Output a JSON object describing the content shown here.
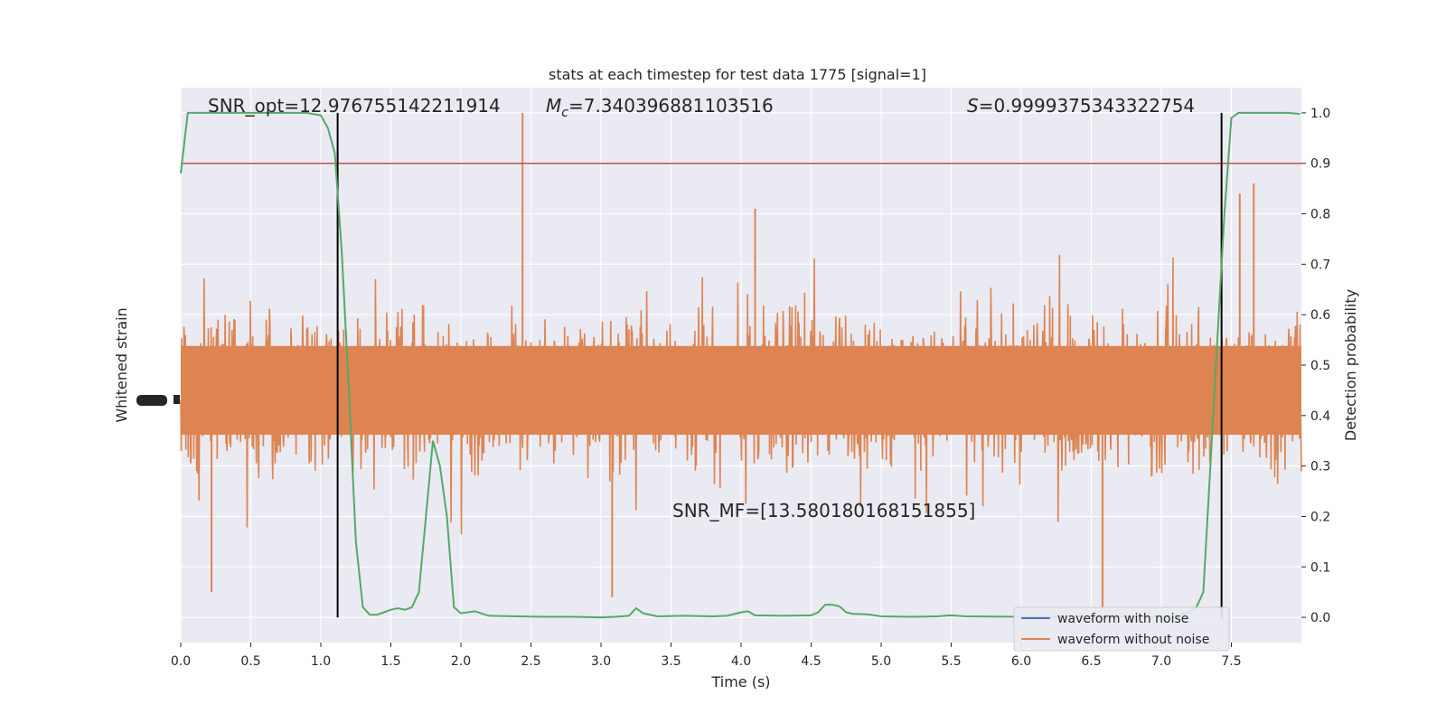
{
  "chart_data": {
    "type": "line",
    "title": "stats at each timestep for test data 1775 [signal=1]",
    "xlabel": "Time (s)",
    "ylabel_left": "Whitened strain",
    "ylabel_right": "Detection probability",
    "xlim": [
      0.0,
      8.0
    ],
    "x_ticks": [
      0.0,
      0.5,
      1.0,
      1.5,
      2.0,
      2.5,
      3.0,
      3.5,
      4.0,
      4.5,
      5.0,
      5.5,
      6.0,
      6.5,
      7.0,
      7.5
    ],
    "x_tick_labels": [
      "0.0",
      "0.5",
      "1.0",
      "1.5",
      "2.0",
      "2.5",
      "3.0",
      "3.5",
      "4.0",
      "4.5",
      "5.0",
      "5.5",
      "6.0",
      "6.5",
      "7.0",
      "7.5"
    ],
    "right_ylim": [
      -0.05,
      1.05
    ],
    "right_y_ticks": [
      0.0,
      0.1,
      0.2,
      0.3,
      0.4,
      0.5,
      0.6,
      0.7,
      0.8,
      0.9,
      1.0
    ],
    "right_y_tick_labels": [
      "0.0",
      "0.1",
      "0.2",
      "0.3",
      "0.4",
      "0.5",
      "0.6",
      "0.7",
      "0.8",
      "0.9",
      "1.0"
    ],
    "threshold": 0.9,
    "event_lines_x": [
      1.12,
      7.43
    ],
    "annotations": {
      "snr_opt": "SNR_opt=12.976755142211914",
      "mc_symbol": "M",
      "mc_sub": "c",
      "mc_value": "=7.340396881103516",
      "s_symbol": "S",
      "s_value": "=0.9999375343322754",
      "snr_mf": "SNR_MF=[13.580180168151855]"
    },
    "legend": {
      "placement": "lower-right",
      "entries": [
        {
          "label": "waveform with noise",
          "color": "#4c72b0"
        },
        {
          "label": "waveform without noise",
          "color": "#dd8452"
        }
      ]
    },
    "series": [
      {
        "name": "waveform without noise",
        "color": "#dd8452",
        "kind": "strain",
        "center": 0.45,
        "band_amplitude": 0.16,
        "spikes": [
          {
            "x": 2.44,
            "hi": 1.0
          },
          {
            "x": 4.1,
            "hi": 0.81
          },
          {
            "x": 7.56,
            "hi": 0.84
          },
          {
            "x": 7.66,
            "hi": 0.86
          },
          {
            "x": 0.22,
            "lo": 0.05
          },
          {
            "x": 6.58,
            "lo": 0.02
          },
          {
            "x": 3.08,
            "lo": 0.04
          }
        ]
      },
      {
        "name": "Detection probability",
        "color": "#55a868",
        "kind": "probability",
        "x": [
          0.0,
          0.05,
          0.1,
          0.2,
          0.3,
          0.5,
          0.7,
          0.9,
          1.0,
          1.05,
          1.1,
          1.15,
          1.2,
          1.25,
          1.3,
          1.35,
          1.4,
          1.45,
          1.5,
          1.55,
          1.6,
          1.65,
          1.7,
          1.75,
          1.8,
          1.85,
          1.9,
          1.95,
          2.0,
          2.1,
          2.2,
          2.4,
          2.6,
          2.8,
          3.0,
          3.1,
          3.2,
          3.25,
          3.3,
          3.4,
          3.6,
          3.8,
          3.9,
          4.0,
          4.05,
          4.1,
          4.3,
          4.5,
          4.55,
          4.6,
          4.65,
          4.7,
          4.75,
          4.8,
          4.9,
          5.0,
          5.2,
          5.4,
          5.5,
          5.6,
          6.0,
          6.5,
          7.0,
          7.1,
          7.2,
          7.25,
          7.3,
          7.35,
          7.4,
          7.45,
          7.5,
          7.55,
          7.6,
          7.7,
          7.8,
          7.9,
          7.99
        ],
        "y": [
          0.88,
          1.0,
          1.0,
          1.0,
          1.0,
          1.0,
          1.0,
          1.0,
          0.995,
          0.97,
          0.92,
          0.72,
          0.45,
          0.15,
          0.02,
          0.005,
          0.005,
          0.01,
          0.015,
          0.018,
          0.015,
          0.02,
          0.05,
          0.2,
          0.35,
          0.3,
          0.2,
          0.02,
          0.008,
          0.012,
          0.003,
          0.002,
          0.001,
          0.001,
          0.0,
          0.001,
          0.003,
          0.018,
          0.008,
          0.002,
          0.003,
          0.002,
          0.003,
          0.01,
          0.012,
          0.004,
          0.003,
          0.004,
          0.01,
          0.025,
          0.025,
          0.022,
          0.01,
          0.007,
          0.006,
          0.002,
          0.001,
          0.002,
          0.004,
          0.002,
          0.001,
          0.001,
          0.002,
          0.003,
          0.01,
          0.02,
          0.05,
          0.3,
          0.55,
          0.8,
          0.99,
          1.0,
          1.0,
          1.0,
          1.0,
          1.0,
          0.998
        ]
      }
    ]
  }
}
